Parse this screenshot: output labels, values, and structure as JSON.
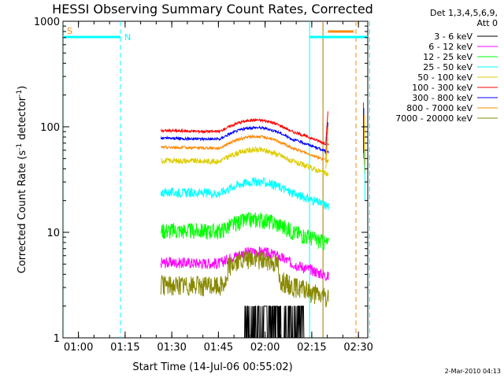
{
  "chart_data": {
    "type": "line",
    "title": "HESSI Observing Summary Count Rates, Corrected",
    "xlabel": "Start Time (14-Jul-06 00:55:02)",
    "ylabel_main": "Corrected Count Rate (s",
    "ylabel_exp1": "-1",
    "ylabel_mid": " detector",
    "ylabel_exp2": "-1",
    "ylabel_end": ")",
    "yscale": "log",
    "ylim": [
      1,
      1000
    ],
    "xlim": [
      "00:55:02",
      "02:33:00"
    ],
    "x_ticks": [
      "01:00",
      "01:15",
      "01:30",
      "01:45",
      "02:00",
      "02:15",
      "02:30"
    ],
    "y_ticks": [
      "1",
      "10",
      "100",
      "1000"
    ],
    "legend_header": [
      "Det 1,3,4,5,6,9,",
      "Att 0"
    ],
    "legend_position": "right",
    "footer_date": "2-Mar-2010 04:13",
    "flags": [
      {
        "label": "S",
        "color": "#ff8800"
      },
      {
        "label": "N",
        "color": "#00ffff"
      }
    ],
    "series": [
      {
        "name": "3 - 6 keV",
        "color": "#000000",
        "style": "noisy",
        "points": [
          [
            1.0,
            1
          ],
          [
            1.2,
            1
          ],
          [
            1.4,
            1
          ],
          [
            1.6,
            1
          ]
        ]
      },
      {
        "name": "6 - 12 keV",
        "color": "#ff00ff",
        "style": "noisy",
        "points": [
          [
            1.0,
            6
          ],
          [
            1.4,
            6
          ],
          [
            1.6,
            6
          ],
          [
            1.8,
            6
          ]
        ]
      },
      {
        "name": "12 - 25 keV",
        "color": "#00ff00",
        "style": "noisy",
        "points": [
          [
            1.0,
            10
          ],
          [
            1.2,
            10
          ],
          [
            1.4,
            13
          ],
          [
            1.6,
            12
          ],
          [
            1.8,
            10
          ]
        ]
      },
      {
        "name": "25 - 50 keV",
        "color": "#00ffff",
        "style": "noisy",
        "points": [
          [
            1.0,
            25
          ],
          [
            1.2,
            24
          ],
          [
            1.4,
            27
          ],
          [
            1.6,
            28
          ],
          [
            1.8,
            24
          ]
        ]
      },
      {
        "name": "50 - 100 keV",
        "color": "#ddcc00",
        "style": "noisy",
        "points": [
          [
            1.0,
            48
          ],
          [
            1.2,
            48
          ],
          [
            1.4,
            58
          ],
          [
            1.6,
            60
          ],
          [
            1.8,
            46
          ]
        ]
      },
      {
        "name": "100 - 300 keV",
        "color": "#ff0000",
        "style": "noisy",
        "points": [
          [
            1.0,
            95
          ],
          [
            1.2,
            95
          ],
          [
            1.4,
            118
          ],
          [
            1.6,
            118
          ],
          [
            1.8,
            88
          ]
        ]
      },
      {
        "name": "300 - 800 keV",
        "color": "#0000ff",
        "style": "noisy",
        "points": [
          [
            1.0,
            80
          ],
          [
            1.2,
            75
          ],
          [
            1.4,
            92
          ],
          [
            1.6,
            92
          ],
          [
            1.8,
            70
          ]
        ]
      },
      {
        "name": "800 - 7000 keV",
        "color": "#ff8800",
        "style": "noisy",
        "points": [
          [
            1.0,
            66
          ],
          [
            1.2,
            64
          ],
          [
            1.4,
            78
          ],
          [
            1.6,
            80
          ],
          [
            1.8,
            64
          ]
        ]
      },
      {
        "name": "7000 - 20000 keV",
        "color": "#888800",
        "style": "noisy",
        "points": [
          [
            1.0,
            3
          ],
          [
            1.2,
            3
          ],
          [
            1.4,
            5
          ],
          [
            1.6,
            4
          ],
          [
            1.8,
            3
          ]
        ]
      }
    ]
  }
}
